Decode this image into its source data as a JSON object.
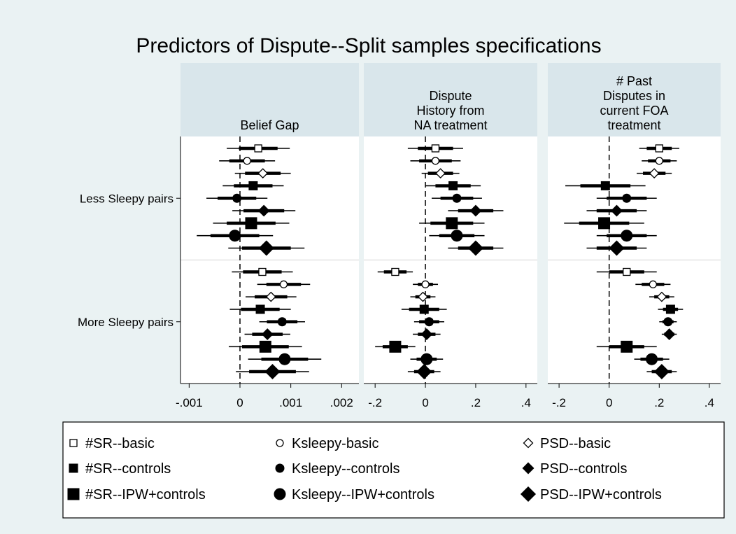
{
  "chart_data": {
    "type": "coefplot",
    "title": "Predictors of Dispute--Split samples specifications",
    "categories": [
      "Less Sleepy pairs",
      "More Sleepy pairs"
    ],
    "color": "#000000",
    "series": [
      {
        "name": "#SR--basic",
        "marker": "square-open",
        "size": "small"
      },
      {
        "name": "Ksleepy-basic",
        "marker": "circle-open",
        "size": "small"
      },
      {
        "name": "PSD--basic",
        "marker": "diamond-open",
        "size": "small"
      },
      {
        "name": "#SR--controls",
        "marker": "square",
        "size": "medium"
      },
      {
        "name": "Ksleepy--controls",
        "marker": "circle",
        "size": "medium"
      },
      {
        "name": "PSD--controls",
        "marker": "diamond",
        "size": "medium"
      },
      {
        "name": "#SR--IPW+controls",
        "marker": "square",
        "size": "large"
      },
      {
        "name": "Ksleepy--IPW+controls",
        "marker": "circle",
        "size": "large"
      },
      {
        "name": "PSD--IPW+controls",
        "marker": "diamond",
        "size": "large"
      }
    ],
    "panels": [
      {
        "title": [
          "Belief Gap"
        ],
        "xlim": [
          -0.00117,
          0.00234
        ],
        "xticks": [
          {
            "value": -0.001,
            "label": "-.001"
          },
          0,
          {
            "value": 0.001,
            "label": ".001"
          },
          {
            "value": 0.002,
            "label": ".002"
          }
        ],
        "series": [
          {
            "values": [
              0.00036,
              0.00044
            ],
            "err_inner": [
              0.00038,
              0.00038
            ],
            "err_outer": [
              0.00062,
              0.0006
            ]
          },
          {
            "values": [
              0.00014,
              0.00086
            ],
            "err_inner": [
              0.00035,
              0.00034
            ],
            "err_outer": [
              0.00055,
              0.00052
            ]
          },
          {
            "values": [
              0.00045,
              0.00061
            ],
            "err_inner": [
              0.00035,
              0.00032
            ],
            "err_outer": [
              0.00055,
              0.0005
            ]
          },
          {
            "values": [
              0.00026,
              0.0004
            ],
            "err_inner": [
              0.00038,
              0.00038
            ],
            "err_outer": [
              0.0006,
              0.0006
            ]
          },
          {
            "values": [
              -6e-05,
              0.00083
            ],
            "err_inner": [
              0.00038,
              0.0003
            ],
            "err_outer": [
              0.0006,
              0.00045
            ]
          },
          {
            "values": [
              0.00047,
              0.00054
            ],
            "err_inner": [
              0.0004,
              0.0003
            ],
            "err_outer": [
              0.00062,
              0.00045
            ]
          },
          {
            "values": [
              0.00022,
              0.0005
            ],
            "err_inner": [
              0.00048,
              0.00046
            ],
            "err_outer": [
              0.00075,
              0.00072
            ]
          },
          {
            "values": [
              -0.0001,
              0.00088
            ],
            "err_inner": [
              0.00048,
              0.00046
            ],
            "err_outer": [
              0.00075,
              0.00072
            ]
          },
          {
            "values": [
              0.00052,
              0.00064
            ],
            "err_inner": [
              0.00048,
              0.00046
            ],
            "err_outer": [
              0.00075,
              0.00072
            ]
          }
        ]
      },
      {
        "title": [
          "Dispute",
          "History from",
          "NA treatment"
        ],
        "xlim": [
          -0.245,
          0.445
        ],
        "xticks": [
          {
            "value": -0.2,
            "label": "-.2"
          },
          0,
          {
            "value": 0.2,
            "label": ".2"
          },
          {
            "value": 0.4,
            "label": ".4"
          }
        ],
        "series": [
          {
            "values": [
              0.04,
              -0.12
            ],
            "err_inner": [
              0.07,
              0.045
            ],
            "err_outer": [
              0.11,
              0.07
            ]
          },
          {
            "values": [
              0.04,
              0.0
            ],
            "err_inner": [
              0.065,
              0.03
            ],
            "err_outer": [
              0.1,
              0.05
            ]
          },
          {
            "values": [
              0.06,
              -0.01
            ],
            "err_inner": [
              0.05,
              0.03
            ],
            "err_outer": [
              0.075,
              0.05
            ]
          },
          {
            "values": [
              0.11,
              -0.005
            ],
            "err_inner": [
              0.07,
              0.06
            ],
            "err_outer": [
              0.11,
              0.09
            ]
          },
          {
            "values": [
              0.125,
              0.015
            ],
            "err_inner": [
              0.065,
              0.04
            ],
            "err_outer": [
              0.1,
              0.06
            ]
          },
          {
            "values": [
              0.2,
              0.005
            ],
            "err_inner": [
              0.07,
              0.035
            ],
            "err_outer": [
              0.11,
              0.055
            ]
          },
          {
            "values": [
              0.105,
              -0.12
            ],
            "err_inner": [
              0.085,
              0.05
            ],
            "err_outer": [
              0.13,
              0.08
            ]
          },
          {
            "values": [
              0.125,
              0.005
            ],
            "err_inner": [
              0.07,
              0.04
            ],
            "err_outer": [
              0.11,
              0.065
            ]
          },
          {
            "values": [
              0.2,
              -0.005
            ],
            "err_inner": [
              0.07,
              0.04
            ],
            "err_outer": [
              0.11,
              0.065
            ]
          }
        ]
      },
      {
        "title": [
          "# Past",
          "Disputes in",
          "current FOA",
          "treatment"
        ],
        "xlim": [
          -0.245,
          0.445
        ],
        "xticks": [
          {
            "value": -0.2,
            "label": "-.2"
          },
          0,
          {
            "value": 0.2,
            "label": ".2"
          },
          {
            "value": 0.4,
            "label": ".4"
          }
        ],
        "series": [
          {
            "values": [
              0.2,
              0.07
            ],
            "err_inner": [
              0.05,
              0.07
            ],
            "err_outer": [
              0.08,
              0.12
            ]
          },
          {
            "values": [
              0.2,
              0.175
            ],
            "err_inner": [
              0.045,
              0.045
            ],
            "err_outer": [
              0.07,
              0.07
            ]
          },
          {
            "values": [
              0.18,
              0.21
            ],
            "err_inner": [
              0.045,
              0.03
            ],
            "err_outer": [
              0.07,
              0.05
            ]
          },
          {
            "values": [
              -0.015,
              0.245
            ],
            "err_inner": [
              0.1,
              0.03
            ],
            "err_outer": [
              0.16,
              0.05
            ]
          },
          {
            "values": [
              0.07,
              0.235
            ],
            "err_inner": [
              0.08,
              0.022
            ],
            "err_outer": [
              0.12,
              0.035
            ]
          },
          {
            "values": [
              0.03,
              0.24
            ],
            "err_inner": [
              0.08,
              0.02
            ],
            "err_outer": [
              0.12,
              0.03
            ]
          },
          {
            "values": [
              -0.02,
              0.07
            ],
            "err_inner": [
              0.1,
              0.07
            ],
            "err_outer": [
              0.16,
              0.12
            ]
          },
          {
            "values": [
              0.07,
              0.17
            ],
            "err_inner": [
              0.08,
              0.045
            ],
            "err_outer": [
              0.12,
              0.07
            ]
          },
          {
            "values": [
              0.03,
              0.21
            ],
            "err_inner": [
              0.08,
              0.04
            ],
            "err_outer": [
              0.12,
              0.06
            ]
          }
        ]
      }
    ]
  }
}
